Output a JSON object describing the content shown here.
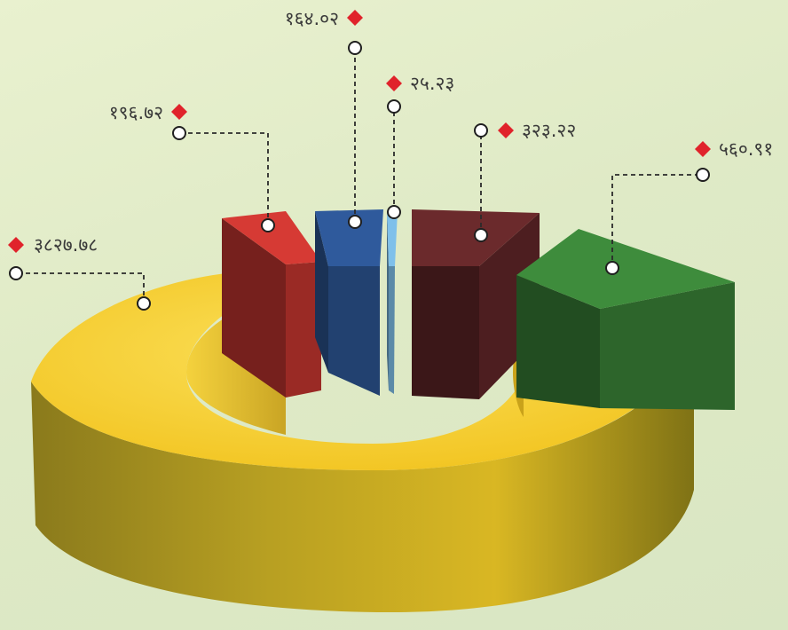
{
  "chart_data": {
    "type": "pie",
    "style": "3d-donut-exploded",
    "labels": [
      "३८२७.७८",
      "१९६.७२",
      "१६४.०२",
      "२५.२३",
      "३२३.२२",
      "५६०.९१"
    ],
    "values": [
      3827.78,
      196.72,
      164.02,
      25.23,
      323.22,
      560.91
    ],
    "colors": [
      "#f4c928",
      "#d63a34",
      "#2f5a9c",
      "#7fc0ea",
      "#6b2a2c",
      "#3e8c3c"
    ],
    "marker_color": "#e0232b",
    "legend": "none",
    "title": ""
  }
}
